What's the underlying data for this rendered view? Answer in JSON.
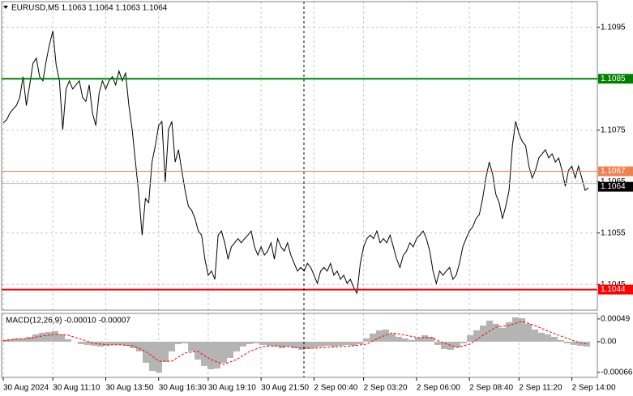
{
  "chart_data": [
    {
      "type": "line",
      "title": "EURUSD,M5  1.1063 1.1064 1.1063 1.1064",
      "categories": [
        "30 Aug 2024",
        null,
        null,
        null,
        null,
        null,
        null,
        null,
        null,
        null,
        null,
        null,
        null,
        null,
        null,
        "30 Aug 11:10",
        null,
        null,
        null,
        null,
        null,
        null,
        null,
        null,
        null,
        null,
        null,
        null,
        null,
        null,
        null,
        "30 Aug 13:50",
        null,
        null,
        null,
        null,
        null,
        null,
        null,
        null,
        null,
        null,
        null,
        null,
        null,
        null,
        null,
        "30 Aug 16:30",
        null,
        null,
        null,
        null,
        null,
        null,
        null,
        null,
        null,
        null,
        null,
        null,
        null,
        null,
        "30 Aug 19:10",
        null,
        null,
        null,
        null,
        null,
        null,
        null,
        null,
        null,
        null,
        null,
        null,
        null,
        null,
        null,
        "30 Aug 21:50",
        null,
        null,
        null,
        null,
        null,
        null,
        null,
        null,
        null,
        null,
        null,
        null,
        null,
        null,
        null,
        "2 Sep 00:40",
        null,
        null,
        null,
        null,
        null,
        null,
        null,
        null,
        null,
        null,
        null,
        null,
        null,
        null,
        "2 Sep 03:20",
        null,
        null,
        null,
        null,
        null,
        null,
        null,
        null,
        null,
        null,
        null,
        null,
        null,
        null,
        null,
        "2 Sep 06:00",
        null,
        null,
        null,
        null,
        null,
        null,
        null,
        null,
        null,
        null,
        null,
        null,
        null,
        null,
        null,
        "2 Sep 08:40",
        null,
        null,
        null,
        null,
        null,
        null,
        null,
        null,
        null,
        null,
        null,
        null,
        null,
        null,
        "2 Sep 11:20",
        null,
        null,
        null,
        null,
        null,
        null,
        null,
        null,
        null,
        null,
        null,
        null,
        null,
        null,
        null,
        "2 Sep 14:00",
        null,
        null,
        null,
        null,
        null
      ],
      "series": [
        {
          "color": "#000000",
          "values": [
            1.10764,
            1.1077,
            1.10783,
            1.10791,
            1.10798,
            1.10814,
            1.10854,
            1.10798,
            1.10838,
            1.1088,
            1.1089,
            1.10854,
            1.10846,
            1.10885,
            1.10917,
            1.10943,
            1.10877,
            1.10846,
            1.10751,
            1.1083,
            1.10846,
            1.1083,
            1.10838,
            1.10846,
            1.10814,
            1.10806,
            1.10838,
            1.10783,
            1.10759,
            1.10822,
            1.10846,
            1.1083,
            1.10846,
            1.10854,
            1.10838,
            1.10865,
            1.10846,
            1.10861,
            1.10798,
            1.10751,
            1.10688,
            1.10625,
            1.10546,
            1.10617,
            1.10609,
            1.10688,
            1.1072,
            1.10759,
            1.10767,
            1.10649,
            1.10751,
            1.10767,
            1.10688,
            1.10712,
            1.10672,
            1.10633,
            1.10602,
            1.10594,
            1.10578,
            1.10554,
            1.10546,
            1.10499,
            1.10468,
            1.10476,
            1.1046,
            1.10546,
            1.10554,
            1.10531,
            1.10499,
            1.10523,
            1.10531,
            1.10539,
            1.10531,
            1.10539,
            1.10546,
            1.10554,
            1.10523,
            1.10507,
            1.10523,
            1.10507,
            1.10515,
            1.10531,
            1.10499,
            1.10539,
            1.10523,
            1.10515,
            1.10531,
            1.10507,
            1.10491,
            1.10476,
            1.10483,
            1.10476,
            1.10491,
            1.10483,
            1.10468,
            1.10452,
            1.10476,
            1.10483,
            1.10476,
            1.10491,
            1.10468,
            1.10476,
            1.1046,
            1.10468,
            1.10452,
            1.1046,
            1.10444,
            1.10433,
            1.10491,
            1.10523,
            1.10539,
            1.10546,
            1.10539,
            1.10554,
            1.10531,
            1.10539,
            1.10531,
            1.10546,
            1.10523,
            1.10499,
            1.10483,
            1.10507,
            1.10515,
            1.10531,
            1.10523,
            1.10539,
            1.10546,
            1.10554,
            1.10539,
            1.10515,
            1.10476,
            1.10452,
            1.10476,
            1.10468,
            1.10476,
            1.10483,
            1.1046,
            1.10468,
            1.10491,
            1.10523,
            1.10539,
            1.10554,
            1.10562,
            1.10578,
            1.10586,
            1.10617,
            1.10657,
            1.10688,
            1.10665,
            1.10625,
            1.10609,
            1.10578,
            1.10602,
            1.10633,
            1.1072,
            1.10767,
            1.10743,
            1.10728,
            1.1072,
            1.1068,
            1.10657,
            1.10672,
            1.10696,
            1.10704,
            1.10712,
            1.10696,
            1.10704,
            1.10688,
            1.10696,
            1.10672,
            1.10641,
            1.10672,
            1.1068,
            1.10657,
            1.1068,
            1.10657,
            1.10633,
            1.10638
          ]
        }
      ],
      "ylim": [
        1.104,
        1.11
      ],
      "yticks": [
        1.1045,
        1.1055,
        1.1065,
        1.1075,
        1.1085,
        1.1095
      ],
      "grid": true,
      "levels": [
        {
          "value": 1.1085,
          "color": "#008000"
        },
        {
          "value": 1.1067,
          "color": "#f0804f"
        },
        {
          "value": 1.1044,
          "color": "#ff0000"
        }
      ],
      "last_price": {
        "value": 1.1064,
        "color": "#000000"
      }
    },
    {
      "type": "macd",
      "title": "MACD(12,26,9) -0.00010 -0.00007",
      "series": [
        {
          "color": "#b4b4b4",
          "values": [
            3.5e-05,
            5.3e-05,
            7e-05,
            7e-05,
            0.000105,
            0.000158,
            0.000193,
            0.00021,
            0.000228,
            0.000158,
            5.3e-05,
            0,
            -5.3e-05,
            -7e-05,
            -8.8e-05,
            -0.000105,
            -8.8e-05,
            -7e-05,
            -7e-05,
            -8.8e-05,
            -0.00014,
            -0.00021,
            -0.000455,
            -0.00063,
            -0.000665,
            -0.000438,
            -0.00021,
            -5.3e-05,
            -3.5e-05,
            -0.00021,
            -0.000385,
            -0.000525,
            -0.000595,
            -0.000578,
            -0.000455,
            -0.00035,
            -0.00021,
            -0.000105,
            -5.3e-05,
            -3.5e-05,
            -7e-05,
            -8.8e-05,
            -0.000105,
            -0.00014,
            -0.000105,
            -0.00014,
            -0.000175,
            -0.000158,
            -0.000123,
            -0.000105,
            -8.8e-05,
            -0.000105,
            -8.8e-05,
            -7e-05,
            -8.8e-05,
            -5.3e-05,
            7e-05,
            0.000175,
            0.000245,
            0.000263,
            0.000175,
            0.000105,
            7e-05,
            3.5e-05,
            8.8e-05,
            0.00014,
            0.000105,
            -7e-05,
            -0.000158,
            -0.000175,
            -0.000123,
            -3.5e-05,
            0.00014,
            0.000245,
            0.00035,
            0.000455,
            0.000385,
            0.000298,
            0.00042,
            0.000525,
            0.000508,
            0.000385,
            0.000263,
            0.000193,
            0.000158,
            0.000105,
            3.5e-05,
            -3.5e-05,
            -7e-05,
            -8.8e-05,
            -0.000105
          ]
        },
        {
          "color": "#ff0000",
          "values": [
            1.8e-05,
            5.3e-05,
            7e-05,
            0.000123,
            0.000158,
            0.00014,
            5.3e-05,
            -3.5e-05,
            -7e-05,
            -7e-05,
            -8.8e-05,
            -0.00021,
            -0.00042,
            -0.00042,
            -0.000245,
            -0.00021,
            -0.000385,
            -0.00049,
            -0.000385,
            -0.00021,
            -0.000105,
            -8.8e-05,
            -0.000105,
            -0.00014,
            -0.00014,
            -0.000123,
            -0.000105,
            -8.8e-05,
            -5.3e-05,
            8.8e-05,
            0.000193,
            0.00014,
            8.8e-05,
            8.8e-05,
            -3.5e-05,
            -0.000123,
            -5.3e-05,
            0.00014,
            0.000315,
            0.00035,
            0.000438,
            0.00035,
            0.000228,
            0.000123,
            1.8e-05,
            -5.3e-05
          ]
        }
      ],
      "ylim": [
        -0.00077,
        0.00061
      ],
      "yticks": [
        -0.00066,
        {
          "value": 0,
          "label": "0.00"
        },
        0.00049
      ]
    }
  ]
}
